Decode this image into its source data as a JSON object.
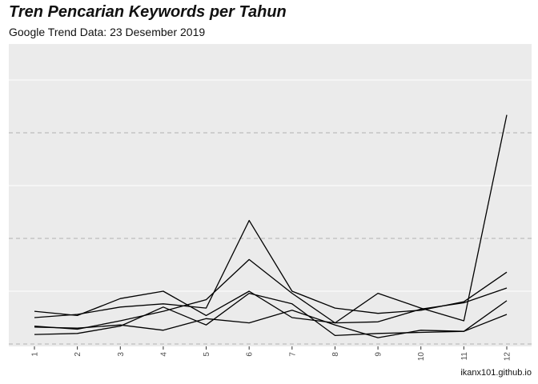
{
  "header": {
    "title": "Tren Pencarian Keywords per Tahun",
    "subtitle": "Google Trend Data: 23 Desember 2019"
  },
  "footer": {
    "caption": "ikanx101.github.io"
  },
  "chart_data": {
    "type": "line",
    "title": "Tren Pencarian Keywords per Tahun",
    "subtitle": "Google Trend Data: 23 Desember 2019",
    "xlabel": "",
    "ylabel": "",
    "categories": [
      "1",
      "2",
      "3",
      "4",
      "5",
      "6",
      "7",
      "8",
      "9",
      "10",
      "11",
      "12"
    ],
    "ylim": [
      0,
      100
    ],
    "y_tick_labels_shown": false,
    "grid": true,
    "grid_style": "major lines dashed grey, minor lines solid white",
    "legend": "none",
    "series_color": "#000000",
    "series": [
      {
        "values": [
          15.5,
          13.5,
          21.5,
          25.0,
          13.5,
          25.0,
          12.5,
          10.0,
          10.5,
          16.5,
          19.5,
          26.5
        ]
      },
      {
        "values": [
          12.5,
          14.0,
          17.5,
          19.0,
          17.0,
          58.5,
          25.0,
          17.0,
          14.5,
          16.0,
          20.0,
          34.0
        ]
      },
      {
        "values": [
          8.5,
          7.0,
          11.0,
          15.5,
          21.0,
          40.0,
          24.0,
          10.0,
          24.0,
          17.0,
          11.0,
          108.5
        ]
      },
      {
        "values": [
          4.5,
          5.0,
          8.5,
          17.5,
          9.0,
          24.0,
          19.0,
          4.0,
          5.0,
          5.5,
          6.0,
          20.5
        ]
      },
      {
        "values": [
          8.0,
          7.5,
          9.0,
          6.5,
          12.0,
          10.0,
          16.0,
          9.0,
          3.0,
          6.5,
          6.0,
          14.0
        ]
      }
    ]
  }
}
